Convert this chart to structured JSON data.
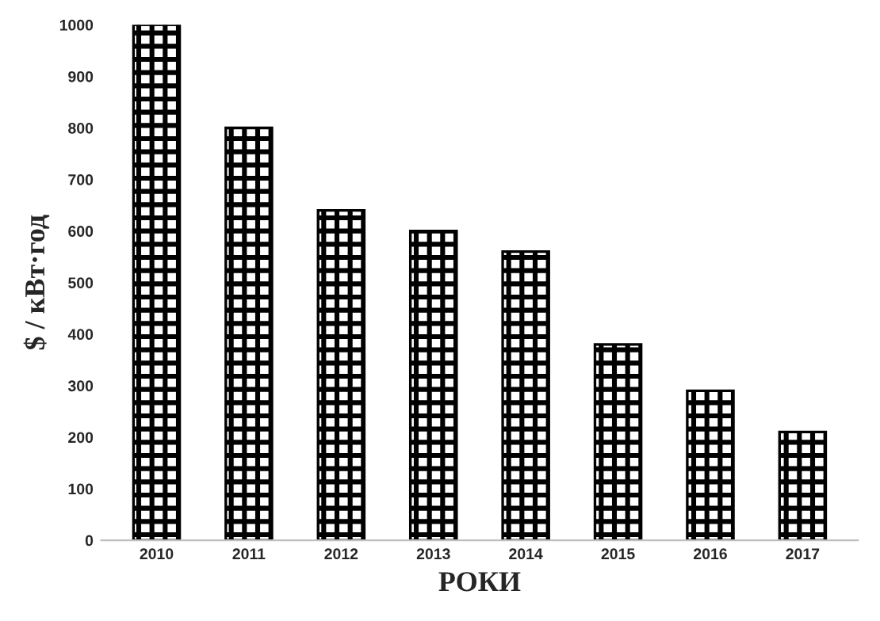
{
  "chart_data": {
    "type": "bar",
    "xlabel": "РОКИ",
    "ylabel": "$ / кВт·год",
    "categories": [
      "2010",
      "2011",
      "2012",
      "2013",
      "2014",
      "2015",
      "2016",
      "2017"
    ],
    "values": [
      1000,
      800,
      640,
      600,
      560,
      380,
      290,
      210
    ],
    "color": "#000000",
    "ylim": [
      0,
      1000
    ],
    "yticks": [
      0,
      100,
      200,
      300,
      400,
      500,
      600,
      700,
      800,
      900,
      1000
    ],
    "grid": false,
    "legend": false
  }
}
